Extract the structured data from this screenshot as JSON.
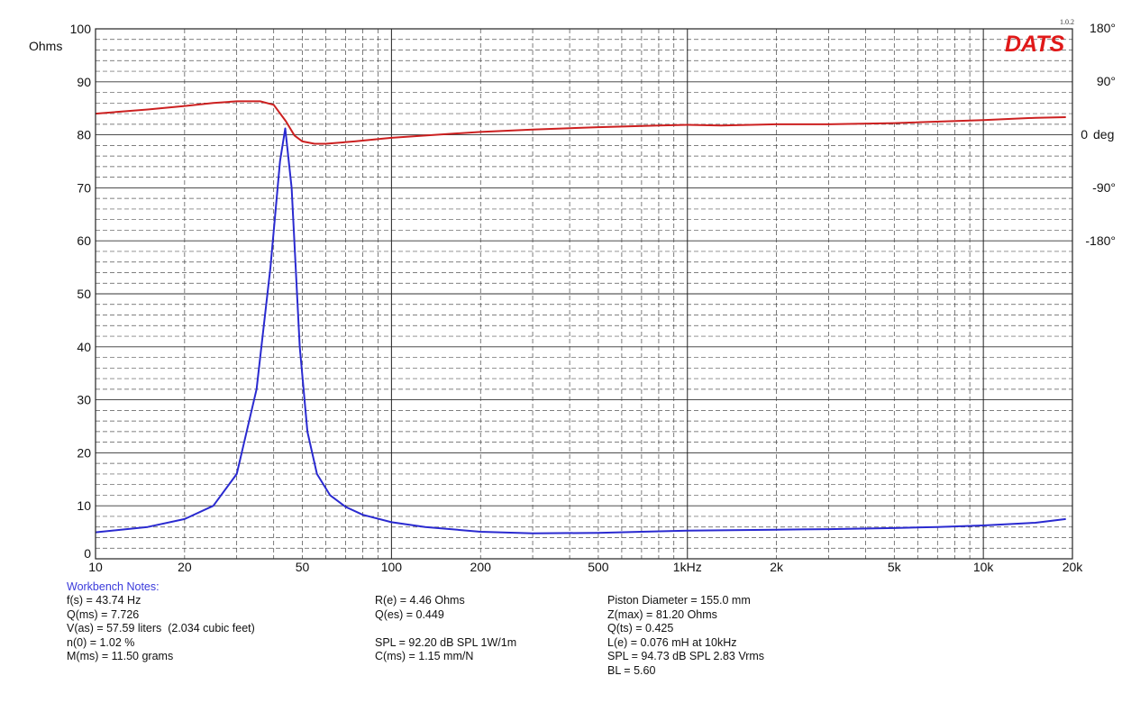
{
  "chart_data": {
    "type": "line",
    "logo": {
      "text": "DATS",
      "version": "1.0.2"
    },
    "xscale": "log",
    "xlim": [
      10,
      20000
    ],
    "xticks": [
      "10",
      "20",
      "50",
      "100",
      "200",
      "500",
      "1kHz",
      "2k",
      "5k",
      "10k",
      "20k"
    ],
    "xtick_values": [
      10,
      20,
      50,
      100,
      200,
      500,
      1000,
      2000,
      5000,
      10000,
      20000
    ],
    "left_axis": {
      "label": "Ohms",
      "ylim": [
        0,
        100
      ],
      "ticks": [
        0,
        10,
        20,
        30,
        40,
        50,
        60,
        70,
        80,
        90,
        100
      ],
      "color": "#3a3adb"
    },
    "right_axis": {
      "label": "deg",
      "ticks": [
        {
          "label": "180°",
          "value": 180
        },
        {
          "label": "90°",
          "value": 90
        },
        {
          "label": "0",
          "value": 0
        },
        {
          "label": "-90°",
          "value": -90
        },
        {
          "label": "-180°",
          "value": -180
        }
      ],
      "color": "#cc2020"
    },
    "grid": true,
    "series": [
      {
        "axis": "left",
        "color": "#2a2ad0",
        "points": [
          [
            10,
            5.0
          ],
          [
            15,
            6.0
          ],
          [
            20,
            7.5
          ],
          [
            25,
            10.0
          ],
          [
            30,
            16.0
          ],
          [
            35,
            32.0
          ],
          [
            39,
            55.0
          ],
          [
            42,
            75.0
          ],
          [
            43.74,
            81.2
          ],
          [
            46,
            70.0
          ],
          [
            49,
            40.0
          ],
          [
            52,
            24.0
          ],
          [
            56,
            16.0
          ],
          [
            62,
            12.0
          ],
          [
            70,
            9.8
          ],
          [
            80,
            8.3
          ],
          [
            100,
            6.9
          ],
          [
            130,
            6.0
          ],
          [
            200,
            5.1
          ],
          [
            300,
            4.8
          ],
          [
            500,
            4.9
          ],
          [
            700,
            5.1
          ],
          [
            1000,
            5.3
          ],
          [
            2000,
            5.5
          ],
          [
            3000,
            5.6
          ],
          [
            5000,
            5.8
          ],
          [
            7000,
            6.0
          ],
          [
            10000,
            6.3
          ],
          [
            15000,
            6.8
          ],
          [
            19000,
            7.5
          ]
        ]
      },
      {
        "axis": "right",
        "color": "#cc2020",
        "points": [
          [
            10,
            35
          ],
          [
            15,
            42
          ],
          [
            20,
            48
          ],
          [
            25,
            53
          ],
          [
            30,
            56
          ],
          [
            36,
            56
          ],
          [
            40,
            50
          ],
          [
            44,
            22
          ],
          [
            47,
            -2
          ],
          [
            50,
            -12
          ],
          [
            55,
            -16
          ],
          [
            60,
            -16
          ],
          [
            75,
            -12
          ],
          [
            100,
            -6
          ],
          [
            150,
            0
          ],
          [
            200,
            4
          ],
          [
            300,
            8
          ],
          [
            500,
            12
          ],
          [
            800,
            15
          ],
          [
            1000,
            16
          ],
          [
            1300,
            15
          ],
          [
            2000,
            17
          ],
          [
            3000,
            17
          ],
          [
            5000,
            19
          ],
          [
            10000,
            24
          ],
          [
            15000,
            28
          ],
          [
            19000,
            29
          ]
        ]
      }
    ]
  },
  "notes": {
    "title": "Workbench Notes:",
    "col1": [
      "f(s) = 43.74 Hz",
      "Q(ms) = 7.726",
      "V(as) = 57.59 liters  (2.034 cubic feet)",
      "n(0) = 1.02 %",
      "M(ms) = 11.50 grams"
    ],
    "col2": [
      "R(e) = 4.46 Ohms",
      "Q(es) = 0.449",
      "",
      "SPL = 92.20 dB SPL 1W/1m",
      "C(ms) = 1.15 mm/N"
    ],
    "col3": [
      "Piston Diameter = 155.0 mm",
      "Z(max) = 81.20 Ohms",
      "Q(ts) = 0.425",
      "L(e) = 0.076 mH at 10kHz",
      "SPL = 94.73 dB SPL 2.83 Vrms",
      "BL = 5.60"
    ]
  }
}
